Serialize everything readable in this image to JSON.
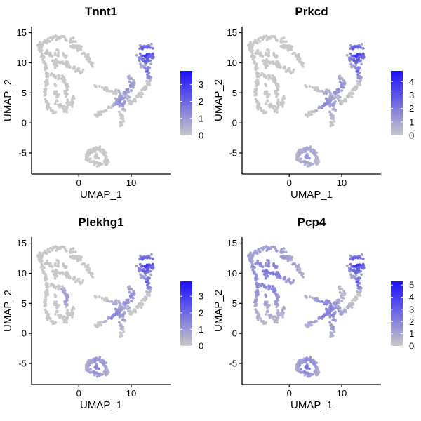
{
  "chart_data": [
    {
      "type": "scatter",
      "title": "Tnnt1",
      "xlabel": "UMAP_1",
      "ylabel": "UMAP_2",
      "xlim": [
        -9,
        17.5
      ],
      "ylim": [
        -8.5,
        16
      ],
      "xticks": [
        "0",
        "10"
      ],
      "yticks": [
        "-5",
        "0",
        "5",
        "10",
        "15"
      ],
      "legend": {
        "position": "right",
        "min": 0,
        "max": 3.8,
        "ticks": [
          "0",
          "1",
          "2",
          "3"
        ],
        "low_color": "#c8c8c8",
        "high_color": "#1a10ff"
      },
      "grid": false,
      "high_expression_regions": [
        {
          "x": 13,
          "y": 11.5,
          "spread": 1.3,
          "value": 3.6
        },
        {
          "x": 13,
          "y": 8.5,
          "spread": 0.9,
          "value": 2.2
        },
        {
          "x": 9.5,
          "y": 6,
          "spread": 1.2,
          "value": 1.6
        },
        {
          "x": 8,
          "y": 3.5,
          "spread": 1.0,
          "value": 1.4
        }
      ]
    },
    {
      "type": "scatter",
      "title": "Prkcd",
      "xlabel": "UMAP_1",
      "ylabel": "UMAP_2",
      "xlim": [
        -9,
        17.5
      ],
      "ylim": [
        -8.5,
        16
      ],
      "xticks": [
        "0",
        "10"
      ],
      "yticks": [
        "-5",
        "0",
        "5",
        "10",
        "15"
      ],
      "legend": {
        "position": "right",
        "min": 0,
        "max": 4.8,
        "ticks": [
          "0",
          "1",
          "2",
          "3",
          "4"
        ],
        "low_color": "#c8c8c8",
        "high_color": "#1a10ff"
      },
      "grid": false,
      "high_expression_regions": [
        {
          "x": 13,
          "y": 11.5,
          "spread": 1.3,
          "value": 4.6
        },
        {
          "x": 13,
          "y": 8.5,
          "spread": 0.9,
          "value": 2.8
        },
        {
          "x": 9.5,
          "y": 6,
          "spread": 1.2,
          "value": 2.2
        },
        {
          "x": 7,
          "y": 3,
          "spread": 1.6,
          "value": 1.8
        },
        {
          "x": 3.5,
          "y": -5.5,
          "spread": 1.5,
          "value": 1.4
        }
      ]
    },
    {
      "type": "scatter",
      "title": "Plekhg1",
      "xlabel": "UMAP_1",
      "ylabel": "UMAP_2",
      "xlim": [
        -9,
        17.5
      ],
      "ylim": [
        -8.5,
        16
      ],
      "xticks": [
        "0",
        "10"
      ],
      "yticks": [
        "-5",
        "0",
        "5",
        "10",
        "15"
      ],
      "legend": {
        "position": "right",
        "min": 0,
        "max": 3.9,
        "ticks": [
          "0",
          "1",
          "2",
          "3"
        ],
        "low_color": "#c8c8c8",
        "high_color": "#1a10ff"
      },
      "grid": false,
      "high_expression_regions": [
        {
          "x": 13,
          "y": 11.5,
          "spread": 1.3,
          "value": 3.7
        },
        {
          "x": 13,
          "y": 8.5,
          "spread": 0.9,
          "value": 2.6
        },
        {
          "x": 9.5,
          "y": 6,
          "spread": 1.2,
          "value": 1.9
        },
        {
          "x": 7,
          "y": 3,
          "spread": 1.6,
          "value": 1.6
        },
        {
          "x": 3.5,
          "y": -5.5,
          "spread": 1.5,
          "value": 1.6
        },
        {
          "x": -2.5,
          "y": 6,
          "spread": 1.2,
          "value": 1.2
        }
      ]
    },
    {
      "type": "scatter",
      "title": "Pcp4",
      "xlabel": "UMAP_1",
      "ylabel": "UMAP_2",
      "xlim": [
        -9,
        17.5
      ],
      "ylim": [
        -8.5,
        16
      ],
      "xticks": [
        "0",
        "10"
      ],
      "yticks": [
        "-5",
        "0",
        "5",
        "10",
        "15"
      ],
      "legend": {
        "position": "right",
        "min": 0,
        "max": 5.3,
        "ticks": [
          "0",
          "1",
          "2",
          "3",
          "4",
          "5"
        ],
        "low_color": "#c8c8c8",
        "high_color": "#1a10ff"
      },
      "grid": false,
      "high_expression_regions": [
        {
          "x": 13,
          "y": 11.5,
          "spread": 1.3,
          "value": 5.0
        },
        {
          "x": 13,
          "y": 8.5,
          "spread": 0.9,
          "value": 3.5
        },
        {
          "x": -4,
          "y": 9.5,
          "spread": 4.5,
          "value": 2.4
        },
        {
          "x": 7,
          "y": 3.5,
          "spread": 2.8,
          "value": 2.3
        },
        {
          "x": 3.5,
          "y": -5.5,
          "spread": 1.5,
          "value": 2.6
        }
      ]
    }
  ]
}
